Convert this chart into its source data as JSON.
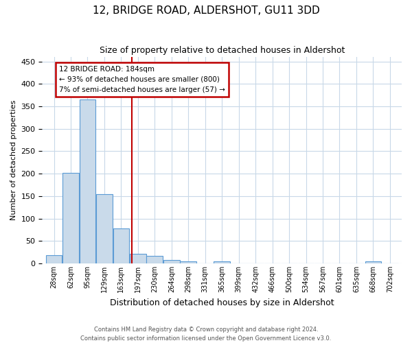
{
  "title1": "12, BRIDGE ROAD, ALDERSHOT, GU11 3DD",
  "title2": "Size of property relative to detached houses in Aldershot",
  "xlabel": "Distribution of detached houses by size in Aldershot",
  "ylabel": "Number of detached properties",
  "bar_labels": [
    "28sqm",
    "62sqm",
    "95sqm",
    "129sqm",
    "163sqm",
    "197sqm",
    "230sqm",
    "264sqm",
    "298sqm",
    "331sqm",
    "365sqm",
    "399sqm",
    "432sqm",
    "466sqm",
    "500sqm",
    "534sqm",
    "567sqm",
    "601sqm",
    "635sqm",
    "668sqm",
    "702sqm"
  ],
  "bar_values": [
    18,
    202,
    365,
    155,
    78,
    22,
    17,
    8,
    5,
    0,
    5,
    0,
    0,
    0,
    0,
    0,
    0,
    0,
    0,
    4,
    0
  ],
  "bar_color": "#c9daea",
  "bar_edge_color": "#5b9bd5",
  "property_line_color": "#c00000",
  "annotation_title": "12 BRIDGE ROAD: 184sqm",
  "annotation_line1": "← 93% of detached houses are smaller (800)",
  "annotation_line2": "7% of semi-detached houses are larger (57) →",
  "annotation_box_color": "#c00000",
  "annotation_bg": "#ffffff",
  "ylim": [
    0,
    460
  ],
  "footnote1": "Contains HM Land Registry data © Crown copyright and database right 2024.",
  "footnote2": "Contains public sector information licensed under the Open Government Licence v3.0.",
  "bg_color": "#ffffff",
  "grid_color": "#c8d8e8",
  "title1_fontsize": 11,
  "title2_fontsize": 9,
  "ylabel_fontsize": 8,
  "xlabel_fontsize": 9,
  "tick_fontsize": 8,
  "xtick_fontsize": 7,
  "footnote_fontsize": 6,
  "annot_fontsize": 7.5
}
